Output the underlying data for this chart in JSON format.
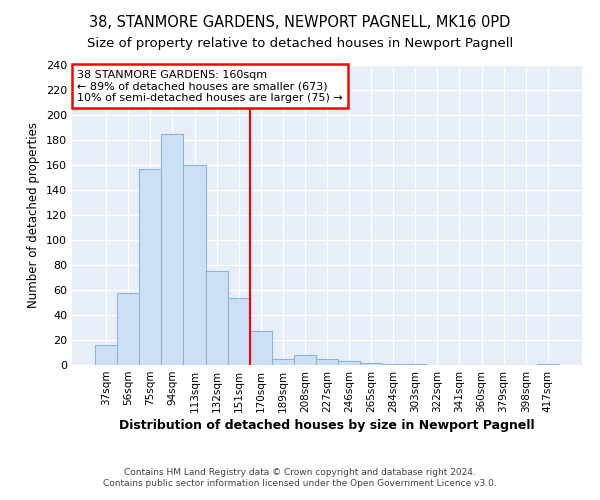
{
  "title": "38, STANMORE GARDENS, NEWPORT PAGNELL, MK16 0PD",
  "subtitle": "Size of property relative to detached houses in Newport Pagnell",
  "xlabel": "Distribution of detached houses by size in Newport Pagnell",
  "ylabel": "Number of detached properties",
  "categories": [
    "37sqm",
    "56sqm",
    "75sqm",
    "94sqm",
    "113sqm",
    "132sqm",
    "151sqm",
    "170sqm",
    "189sqm",
    "208sqm",
    "227sqm",
    "246sqm",
    "265sqm",
    "284sqm",
    "303sqm",
    "322sqm",
    "341sqm",
    "360sqm",
    "379sqm",
    "398sqm",
    "417sqm"
  ],
  "values": [
    16,
    58,
    157,
    185,
    160,
    75,
    54,
    27,
    5,
    8,
    5,
    3,
    2,
    1,
    1,
    0,
    0,
    0,
    0,
    0,
    1
  ],
  "bar_color": "#cce0f5",
  "bar_edge_color": "#8ab4d8",
  "reference_line_x": 6.5,
  "annotation_line1": "38 STANMORE GARDENS: 160sqm",
  "annotation_line2": "← 89% of detached houses are smaller (673)",
  "annotation_line3": "10% of semi-detached houses are larger (75) →",
  "annotation_box_color": "white",
  "annotation_box_edge_color": "red",
  "vline_color": "red",
  "ylim": [
    0,
    240
  ],
  "yticks": [
    0,
    20,
    40,
    60,
    80,
    100,
    120,
    140,
    160,
    180,
    200,
    220,
    240
  ],
  "footer_line1": "Contains HM Land Registry data © Crown copyright and database right 2024.",
  "footer_line2": "Contains public sector information licensed under the Open Government Licence v3.0.",
  "title_fontsize": 10.5,
  "subtitle_fontsize": 9.5,
  "plot_bg_color": "#e8eef8",
  "fig_bg_color": "#ffffff"
}
